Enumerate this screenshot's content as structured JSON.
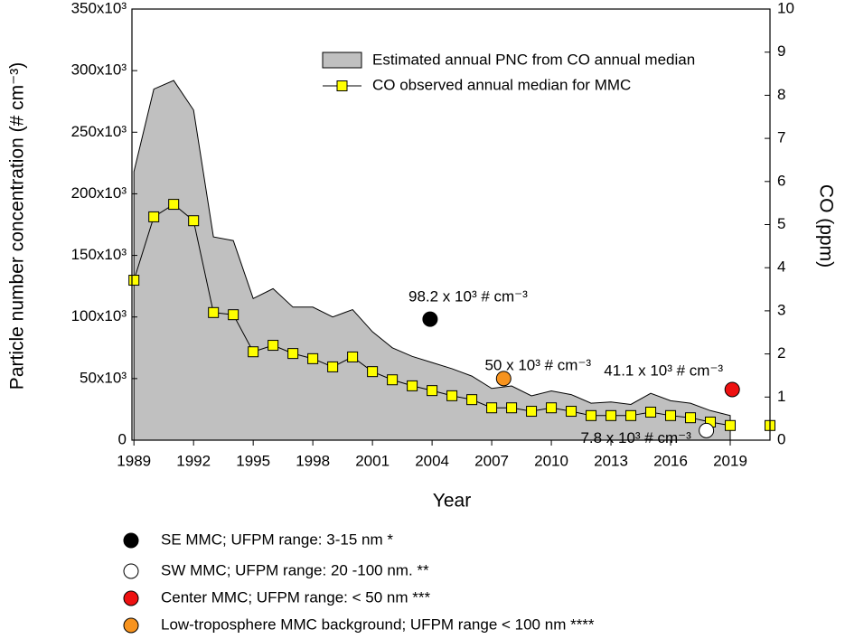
{
  "chart_data": {
    "type": "area-line",
    "xlabel": "Year",
    "ylabel": "Particle number concentration (# cm⁻³)",
    "y2label": "CO (ppm)",
    "xlim": [
      1988.9,
      2021
    ],
    "xticks": [
      1989,
      1992,
      1995,
      1998,
      2001,
      2004,
      2007,
      2010,
      2013,
      2016,
      2019
    ],
    "ylim": [
      0,
      350000
    ],
    "yticks": [
      0,
      {
        "value": 50000,
        "label": "50x10³"
      },
      {
        "value": 100000,
        "label": "100x10³"
      },
      {
        "value": 150000,
        "label": "150x10³"
      },
      {
        "value": 200000,
        "label": "200x10³"
      },
      {
        "value": 250000,
        "label": "250x10³"
      },
      {
        "value": 300000,
        "label": "300x10³"
      },
      {
        "value": 350000,
        "label": "350x10³"
      }
    ],
    "y2lim": [
      0,
      10
    ],
    "y2ticks": [
      0,
      1,
      2,
      3,
      4,
      5,
      6,
      7,
      8,
      9,
      10
    ],
    "series": [
      {
        "name": "Estimated annual PNC from CO annual median",
        "kind": "area",
        "color": "#c0c0c0",
        "x": [
          1989,
          1990,
          1991,
          1992,
          1993,
          1994,
          1995,
          1996,
          1997,
          1998,
          1999,
          2000,
          2001,
          2002,
          2003,
          2004,
          2005,
          2006,
          2007,
          2008,
          2009,
          2010,
          2011,
          2012,
          2013,
          2014,
          2015,
          2016,
          2017,
          2018,
          2019
        ],
        "values": [
          218000,
          285000,
          292000,
          268000,
          165000,
          162000,
          115000,
          123000,
          108000,
          108000,
          100000,
          106000,
          88000,
          75000,
          68000,
          63000,
          58000,
          52000,
          42000,
          44000,
          36000,
          40000,
          37000,
          30000,
          31000,
          29000,
          38000,
          32000,
          30000,
          24000,
          20000
        ]
      },
      {
        "name": "CO observed annual median for MMC",
        "kind": "line",
        "axis": "y2",
        "color": "#ffff00",
        "x": [
          1989,
          1990,
          1991,
          1992,
          1993,
          1994,
          1995,
          1996,
          1997,
          1998,
          1999,
          2000,
          2001,
          2002,
          2003,
          2004,
          2005,
          2006,
          2007,
          2008,
          2009,
          2010,
          2011,
          2012,
          2013,
          2014,
          2015,
          2016,
          2017,
          2018,
          2019,
          2020,
          2021
        ],
        "values": [
          3.71,
          5.18,
          5.47,
          5.09,
          2.96,
          2.91,
          2.05,
          2.2,
          2.01,
          1.89,
          1.7,
          1.93,
          1.59,
          1.4,
          1.26,
          1.15,
          1.03,
          0.94,
          0.75,
          0.75,
          0.67,
          0.75,
          0.67,
          0.57,
          0.57,
          0.57,
          0.65,
          0.57,
          0.52,
          0.42,
          0.34,
          null,
          0.34
        ]
      }
    ],
    "points": [
      {
        "name": "SE MMC; UFPM range: 3-15 nm  *",
        "color": "#000000",
        "x": 2003.9,
        "value": 98200,
        "label": "98.2 x 10³ # cm⁻³"
      },
      {
        "name": "SW MMC; UFPM range: 20 -100 nm. **",
        "color": "#ffffff",
        "x": 2017.8,
        "value": 7800,
        "label": "7.8 x 10³ # cm⁻³"
      },
      {
        "name": "Center MMC; UFPM range: < 50 nm ***",
        "color": "#ee1111",
        "x": 2019.1,
        "value": 41100,
        "label": "41.1 x 10³ # cm⁻³"
      },
      {
        "name": "Low-troposphere MMC background; UFPM range < 100 nm ****",
        "color": "#f7931e",
        "x": 2007.6,
        "value": 50000,
        "label": "50  x 10³ # cm⁻³"
      }
    ]
  }
}
